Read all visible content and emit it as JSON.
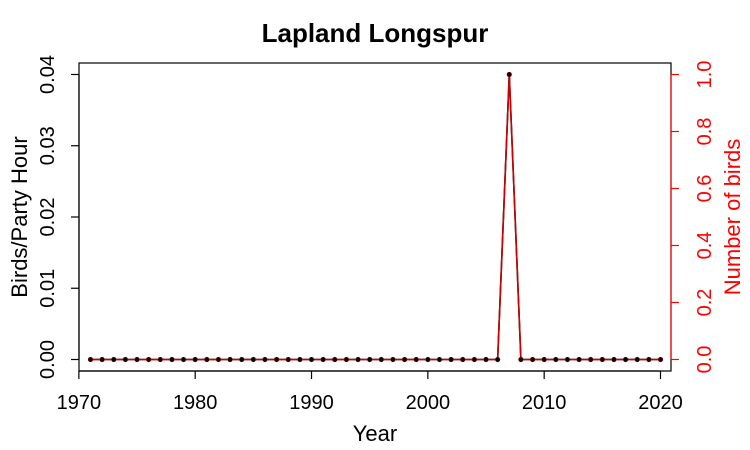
{
  "chart_data": {
    "type": "line",
    "title": "Lapland Longspur",
    "xlabel": "Year",
    "ylabel": "Birds/Party Hour",
    "y2label": "Number of birds",
    "xlim": [
      1971,
      2020
    ],
    "ylim": [
      0,
      0.04
    ],
    "y2lim": [
      0,
      1
    ],
    "x_ticks": [
      1970,
      1980,
      1990,
      2000,
      2010,
      2020
    ],
    "y_ticks": [
      "0.00",
      "0.01",
      "0.02",
      "0.03",
      "0.04"
    ],
    "y2_ticks": [
      "0.0",
      "0.2",
      "0.4",
      "0.6",
      "0.8",
      "1.0"
    ],
    "colors": {
      "primary": "#000000",
      "secondary": "#cc0000",
      "right_axis": "#ff0000"
    },
    "x": [
      1971,
      1972,
      1973,
      1974,
      1975,
      1976,
      1977,
      1978,
      1979,
      1980,
      1981,
      1982,
      1983,
      1984,
      1985,
      1986,
      1987,
      1988,
      1989,
      1990,
      1991,
      1992,
      1993,
      1994,
      1995,
      1996,
      1997,
      1998,
      1999,
      2000,
      2001,
      2002,
      2003,
      2004,
      2005,
      2006,
      2007,
      2008,
      2009,
      2010,
      2011,
      2012,
      2013,
      2014,
      2015,
      2016,
      2017,
      2018,
      2019,
      2020
    ],
    "series": [
      {
        "name": "Birds/Party Hour",
        "axis": "left",
        "values": [
          0,
          0,
          0,
          0,
          0,
          0,
          0,
          0,
          0,
          0,
          0,
          0,
          0,
          0,
          0,
          0,
          0,
          0,
          0,
          0,
          0,
          0,
          0,
          0,
          0,
          0,
          0,
          0,
          0,
          0,
          0,
          0,
          0,
          0,
          0,
          0,
          0.04,
          0,
          0,
          0,
          0,
          0,
          0,
          0,
          0,
          0,
          0,
          0,
          0,
          0
        ]
      },
      {
        "name": "Number of birds",
        "axis": "right",
        "values": [
          0,
          0,
          0,
          0,
          0,
          0,
          0,
          0,
          0,
          0,
          0,
          0,
          0,
          0,
          0,
          0,
          0,
          0,
          0,
          0,
          0,
          0,
          0,
          0,
          0,
          0,
          0,
          0,
          0,
          0,
          0,
          0,
          0,
          0,
          0,
          0,
          1,
          0,
          0,
          0,
          0,
          0,
          0,
          0,
          0,
          0,
          0,
          0,
          0,
          0
        ]
      }
    ]
  }
}
